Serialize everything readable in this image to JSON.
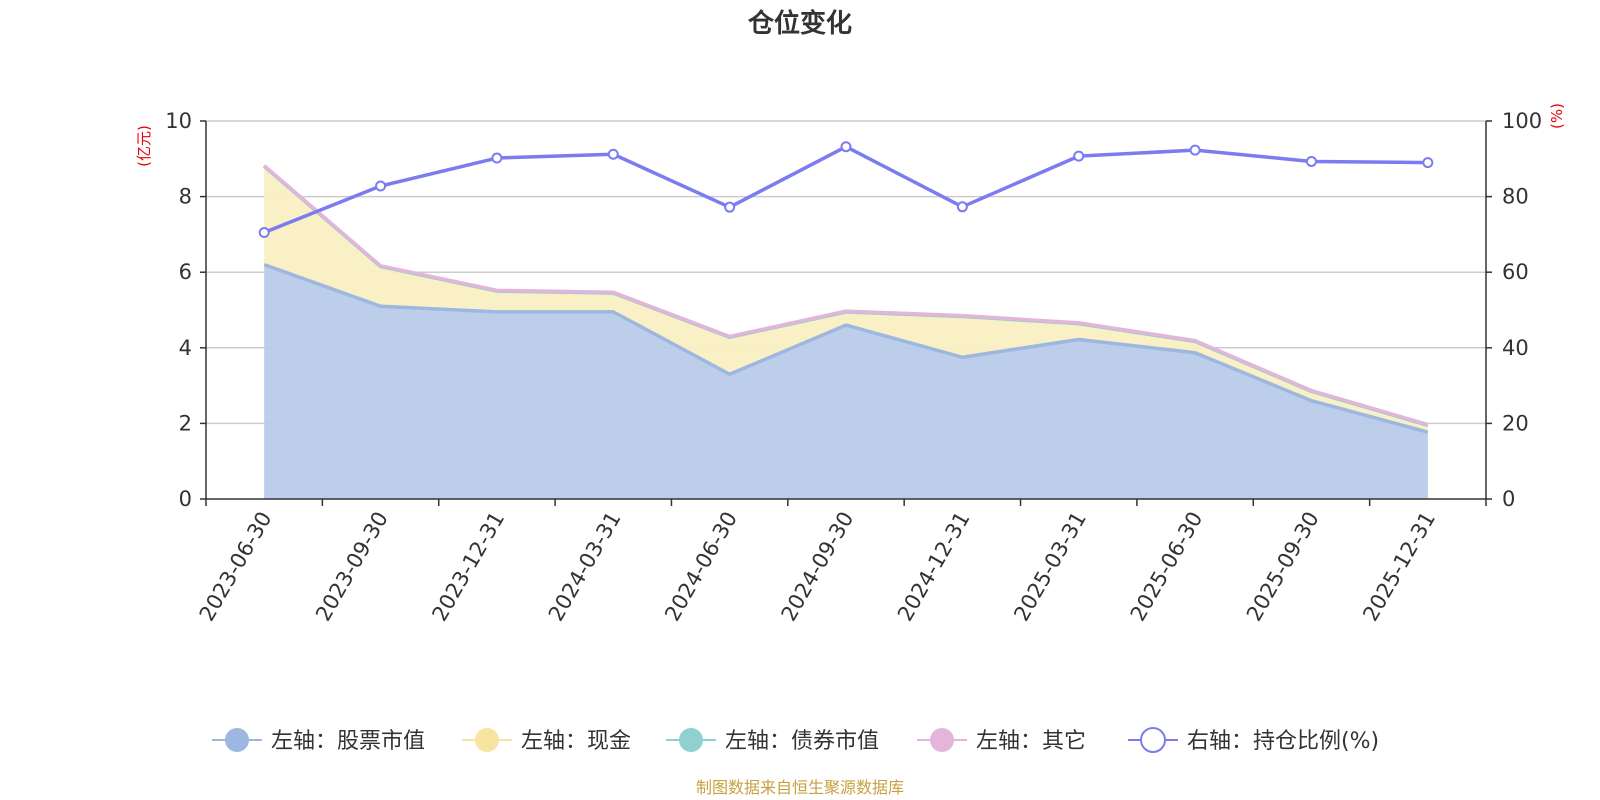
{
  "chart_data": {
    "type": "area",
    "title": "仓位变化",
    "categories": [
      "2023-06-30",
      "2023-09-30",
      "2023-12-31",
      "2024-03-31",
      "2024-06-30",
      "2024-09-30",
      "2024-12-31",
      "2025-03-31",
      "2025-06-30",
      "2025-09-30",
      "2025-12-31"
    ],
    "left_axis": {
      "unit": "(亿元)",
      "ylim": [
        0,
        10
      ],
      "ticks": [
        0,
        2,
        4,
        6,
        8,
        10
      ]
    },
    "right_axis": {
      "unit": "(%)",
      "ylim": [
        0,
        100
      ],
      "ticks": [
        0,
        20,
        40,
        60,
        80,
        100
      ]
    },
    "series": [
      {
        "name": "左轴：股票市值",
        "axis": "left",
        "type": "stacked-area",
        "color": "#9db7e0",
        "fill": "#b8cbe8",
        "values": [
          6.2,
          5.1,
          4.95,
          4.95,
          3.3,
          4.6,
          3.75,
          4.22,
          3.87,
          2.6,
          1.77
        ]
      },
      {
        "name": "左轴：现金",
        "axis": "left",
        "type": "stacked-area",
        "color": "#f7e4a0",
        "fill": "#faefc2",
        "values": [
          2.6,
          1.05,
          0.55,
          0.5,
          0.98,
          0.35,
          1.08,
          0.42,
          0.3,
          0.25,
          0.18
        ]
      },
      {
        "name": "左轴：债券市值",
        "axis": "left",
        "type": "stacked-area",
        "color": "#8fd0d0",
        "fill": "#b6e2e2",
        "values": [
          0,
          0,
          0,
          0,
          0,
          0,
          0,
          0,
          0,
          0,
          0
        ]
      },
      {
        "name": "左轴：其它",
        "axis": "left",
        "type": "stacked-area",
        "color": "#e3b5da",
        "fill": "#efd3ea",
        "values": [
          0.02,
          0.02,
          0.02,
          0.02,
          0.02,
          0.02,
          0.02,
          0.02,
          0.02,
          0.02,
          0.02
        ]
      },
      {
        "name": "右轴：持仓比例(%)",
        "axis": "right",
        "type": "line",
        "color": "#7b7cf0",
        "values": [
          70.5,
          82.8,
          90.2,
          91.2,
          77.2,
          93.2,
          77.3,
          90.7,
          92.3,
          89.3,
          89.0
        ]
      }
    ],
    "grid": true,
    "legend_position": "bottom"
  },
  "footer": {
    "source": "制图数据来自恒生聚源数据库"
  }
}
